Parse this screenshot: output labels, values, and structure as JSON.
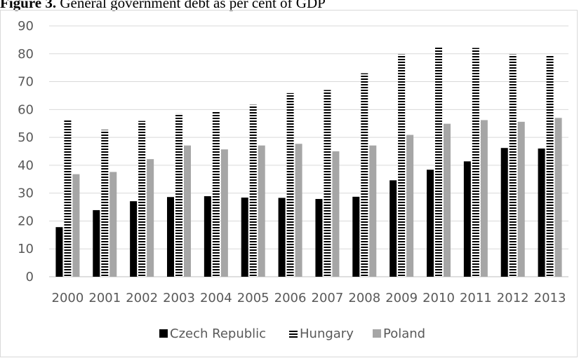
{
  "figure": {
    "caption_lead": "Figure 3.",
    "caption_text": " General government debt as per cent of GDP"
  },
  "chart_data": {
    "type": "bar",
    "title": "",
    "xlabel": "",
    "ylabel": "",
    "ylim": [
      0,
      90
    ],
    "yticks": [
      0,
      10,
      20,
      30,
      40,
      50,
      60,
      70,
      80,
      90
    ],
    "grid": true,
    "legend_position": "bottom",
    "categories": [
      "2000",
      "2001",
      "2002",
      "2003",
      "2004",
      "2005",
      "2006",
      "2007",
      "2008",
      "2009",
      "2010",
      "2011",
      "2012",
      "2013"
    ],
    "series": [
      {
        "name": "Czech Republic",
        "color": "#000000",
        "pattern": "solid",
        "values": [
          17.8,
          23.9,
          27.1,
          28.6,
          28.9,
          28.4,
          28.3,
          27.9,
          28.7,
          34.6,
          38.4,
          41.4,
          46.2,
          46.0
        ]
      },
      {
        "name": "Hungary",
        "color": "#000000",
        "pattern": "horizontal-stripes",
        "values": [
          56.1,
          52.7,
          55.9,
          58.6,
          59.5,
          61.7,
          65.9,
          67.0,
          73.0,
          79.8,
          82.2,
          82.1,
          79.8,
          79.2
        ]
      },
      {
        "name": "Poland",
        "color": "#a6a6a6",
        "pattern": "solid",
        "values": [
          36.8,
          37.6,
          42.2,
          47.1,
          45.7,
          47.1,
          47.7,
          45.0,
          47.1,
          50.9,
          54.9,
          56.2,
          55.6,
          57.0
        ]
      }
    ]
  }
}
